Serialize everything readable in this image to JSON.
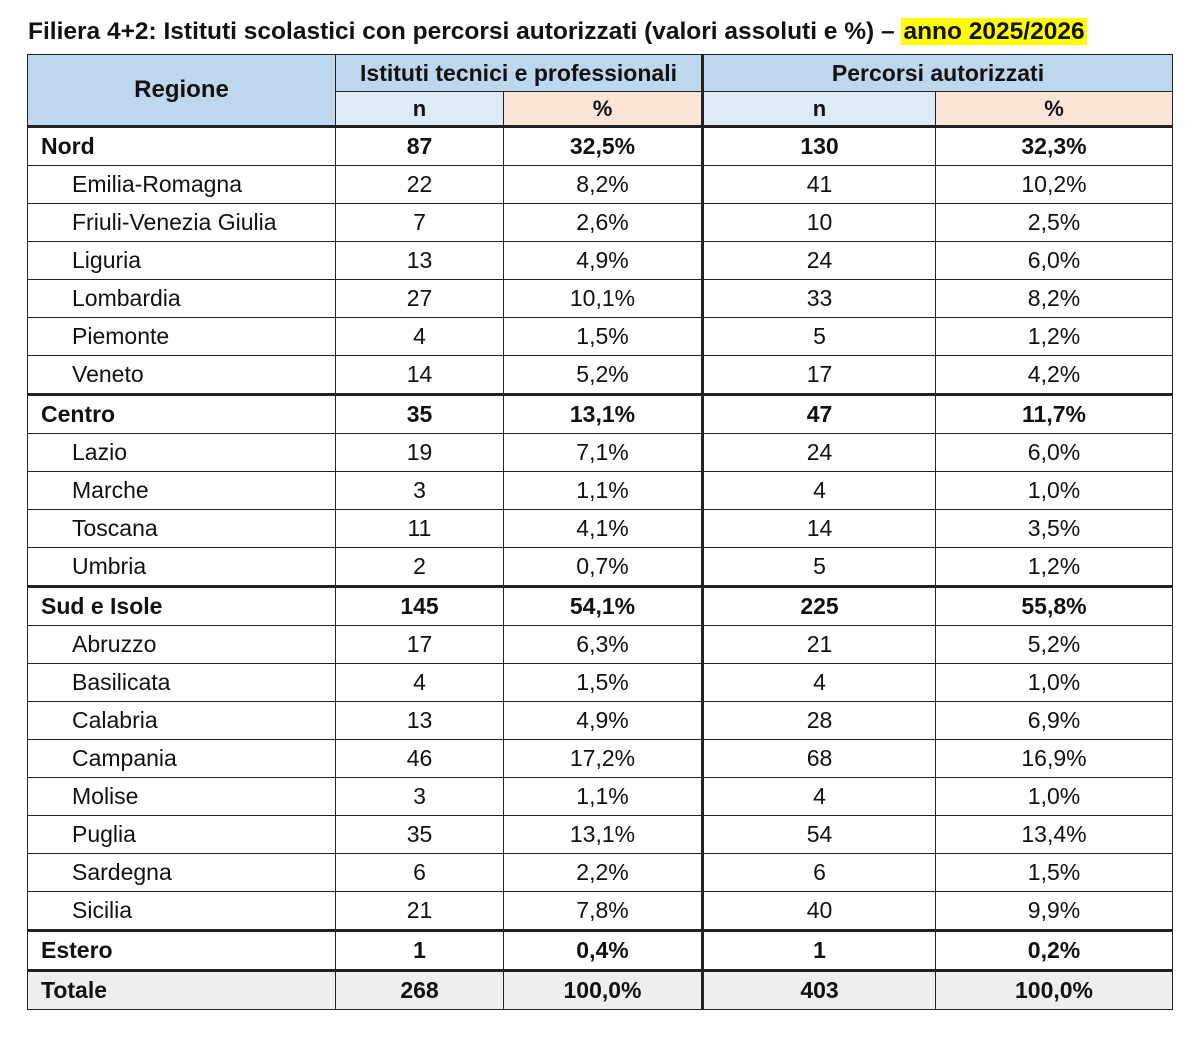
{
  "title": {
    "main": "Filiera 4+2: Istituti scolastici con percorsi autorizzati (valori assoluti e %) –",
    "highlight": "anno 2025/2026"
  },
  "headers": {
    "region": "Regione",
    "group1": "Istituti tecnici e professionali",
    "group2": "Percorsi autorizzati",
    "n": "n",
    "pct": "%"
  },
  "colors": {
    "header_blue": "#bdd7ee",
    "subheader_blue": "#ddebf7",
    "subheader_peach": "#fce4d6",
    "highlight_yellow": "#ffff00",
    "total_grey": "#efefef"
  },
  "rows": [
    {
      "name": "Nord",
      "type": "macro",
      "ist_n": "87",
      "ist_pct": "32,5%",
      "perc_n": "130",
      "perc_pct": "32,3%"
    },
    {
      "name": "Emilia-Romagna",
      "type": "region",
      "ist_n": "22",
      "ist_pct": "8,2%",
      "perc_n": "41",
      "perc_pct": "10,2%"
    },
    {
      "name": "Friuli-Venezia Giulia",
      "type": "region",
      "ist_n": "7",
      "ist_pct": "2,6%",
      "perc_n": "10",
      "perc_pct": "2,5%"
    },
    {
      "name": "Liguria",
      "type": "region",
      "ist_n": "13",
      "ist_pct": "4,9%",
      "perc_n": "24",
      "perc_pct": "6,0%"
    },
    {
      "name": "Lombardia",
      "type": "region",
      "ist_n": "27",
      "ist_pct": "10,1%",
      "perc_n": "33",
      "perc_pct": "8,2%"
    },
    {
      "name": "Piemonte",
      "type": "region",
      "ist_n": "4",
      "ist_pct": "1,5%",
      "perc_n": "5",
      "perc_pct": "1,2%"
    },
    {
      "name": "Veneto",
      "type": "region",
      "ist_n": "14",
      "ist_pct": "5,2%",
      "perc_n": "17",
      "perc_pct": "4,2%"
    },
    {
      "name": "Centro",
      "type": "macro",
      "ist_n": "35",
      "ist_pct": "13,1%",
      "perc_n": "47",
      "perc_pct": "11,7%"
    },
    {
      "name": "Lazio",
      "type": "region",
      "ist_n": "19",
      "ist_pct": "7,1%",
      "perc_n": "24",
      "perc_pct": "6,0%"
    },
    {
      "name": "Marche",
      "type": "region",
      "ist_n": "3",
      "ist_pct": "1,1%",
      "perc_n": "4",
      "perc_pct": "1,0%"
    },
    {
      "name": "Toscana",
      "type": "region",
      "ist_n": "11",
      "ist_pct": "4,1%",
      "perc_n": "14",
      "perc_pct": "3,5%"
    },
    {
      "name": "Umbria",
      "type": "region",
      "ist_n": "2",
      "ist_pct": "0,7%",
      "perc_n": "5",
      "perc_pct": "1,2%"
    },
    {
      "name": "Sud e Isole",
      "type": "macro",
      "ist_n": "145",
      "ist_pct": "54,1%",
      "perc_n": "225",
      "perc_pct": "55,8%"
    },
    {
      "name": "Abruzzo",
      "type": "region",
      "ist_n": "17",
      "ist_pct": "6,3%",
      "perc_n": "21",
      "perc_pct": "5,2%"
    },
    {
      "name": "Basilicata",
      "type": "region",
      "ist_n": "4",
      "ist_pct": "1,5%",
      "perc_n": "4",
      "perc_pct": "1,0%"
    },
    {
      "name": "Calabria",
      "type": "region",
      "ist_n": "13",
      "ist_pct": "4,9%",
      "perc_n": "28",
      "perc_pct": "6,9%"
    },
    {
      "name": "Campania",
      "type": "region",
      "ist_n": "46",
      "ist_pct": "17,2%",
      "perc_n": "68",
      "perc_pct": "16,9%"
    },
    {
      "name": "Molise",
      "type": "region",
      "ist_n": "3",
      "ist_pct": "1,1%",
      "perc_n": "4",
      "perc_pct": "1,0%"
    },
    {
      "name": "Puglia",
      "type": "region",
      "ist_n": "35",
      "ist_pct": "13,1%",
      "perc_n": "54",
      "perc_pct": "13,4%"
    },
    {
      "name": "Sardegna",
      "type": "region",
      "ist_n": "6",
      "ist_pct": "2,2%",
      "perc_n": "6",
      "perc_pct": "1,5%"
    },
    {
      "name": "Sicilia",
      "type": "region",
      "ist_n": "21",
      "ist_pct": "7,8%",
      "perc_n": "40",
      "perc_pct": "9,9%"
    },
    {
      "name": "Estero",
      "type": "macro",
      "ist_n": "1",
      "ist_pct": "0,4%",
      "perc_n": "1",
      "perc_pct": "0,2%"
    },
    {
      "name": "Totale",
      "type": "total",
      "ist_n": "268",
      "ist_pct": "100,0%",
      "perc_n": "403",
      "perc_pct": "100,0%"
    }
  ]
}
